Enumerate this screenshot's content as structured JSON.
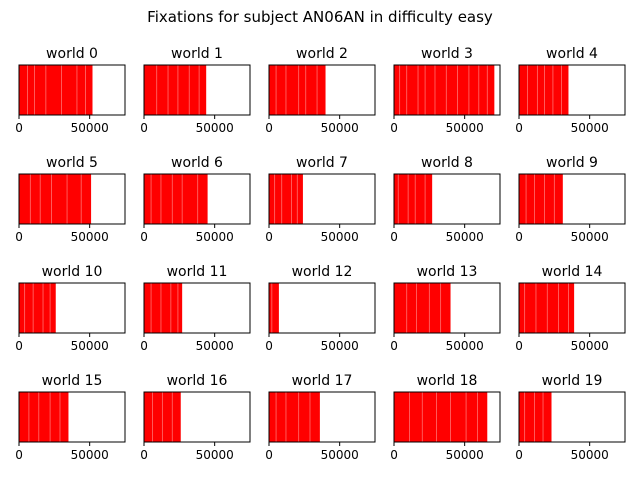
{
  "figure": {
    "title": "Fixations for subject AN06AN in difficulty easy"
  },
  "colors": {
    "fixation": "#ff0000",
    "background": "#ffffff",
    "axes": "#000000"
  },
  "chart_data": {
    "type": "bar",
    "subtype": "event-span (fixation timelines)",
    "layout": "4x5 grid of small multiples",
    "xlim": [
      0,
      75000
    ],
    "xticks": [
      0,
      50000
    ],
    "xtick_labels": [
      "0",
      "50000"
    ],
    "yticks": "none",
    "grid": false,
    "legend": "none",
    "panels": [
      {
        "title": "world 0",
        "end": 52000,
        "gaps": [
          6000,
          11000,
          19000,
          30000,
          41000,
          47000
        ]
      },
      {
        "title": "world 1",
        "end": 44000,
        "gaps": [
          9000,
          17000,
          24000,
          32000,
          39000
        ]
      },
      {
        "title": "world 2",
        "end": 40000,
        "gaps": [
          5000,
          12000,
          21000,
          26000,
          34000
        ]
      },
      {
        "title": "world 3",
        "end": 71000,
        "gaps": [
          4000,
          9000,
          17000,
          22000,
          29000,
          37000,
          45000,
          53000,
          60000,
          66000
        ]
      },
      {
        "title": "world 4",
        "end": 35000,
        "gaps": [
          6000,
          13000,
          18000,
          24000,
          30000
        ]
      },
      {
        "title": "world 5",
        "end": 51000,
        "gaps": [
          8000,
          15000,
          23000,
          34000,
          44000
        ]
      },
      {
        "title": "world 6",
        "end": 45000,
        "gaps": [
          5000,
          12000,
          20000,
          27000,
          38000
        ]
      },
      {
        "title": "world 7",
        "end": 24000,
        "gaps": [
          4000,
          9000,
          16000,
          20000
        ]
      },
      {
        "title": "world 8",
        "end": 27000,
        "gaps": [
          3000,
          10000,
          15000,
          22000
        ]
      },
      {
        "title": "world 9",
        "end": 31000,
        "gaps": [
          5000,
          11000,
          18000,
          25000
        ]
      },
      {
        "title": "world 10",
        "end": 26000,
        "gaps": [
          4000,
          10000,
          17000,
          22000
        ]
      },
      {
        "title": "world 11",
        "end": 27000,
        "gaps": [
          5000,
          12000,
          19000,
          24000
        ]
      },
      {
        "title": "world 12",
        "end": 7000,
        "gaps": [
          2000
        ]
      },
      {
        "title": "world 13",
        "end": 40000,
        "gaps": [
          9000,
          16000,
          25000,
          33000
        ]
      },
      {
        "title": "world 14",
        "end": 39000,
        "gaps": [
          4000,
          12000,
          20000,
          28000,
          35000
        ]
      },
      {
        "title": "world 15",
        "end": 35000,
        "gaps": [
          7000,
          14000,
          22000,
          29000
        ]
      },
      {
        "title": "world 16",
        "end": 26000,
        "gaps": [
          6000,
          13000,
          20000
        ]
      },
      {
        "title": "world 17",
        "end": 36000,
        "gaps": [
          5000,
          12000,
          21000,
          29000
        ]
      },
      {
        "title": "world 18",
        "end": 66000,
        "gaps": [
          11000,
          20000,
          30000,
          40000,
          51000,
          59000
        ]
      },
      {
        "title": "world 19",
        "end": 23000,
        "gaps": [
          4000,
          11000,
          17000
        ]
      }
    ]
  }
}
